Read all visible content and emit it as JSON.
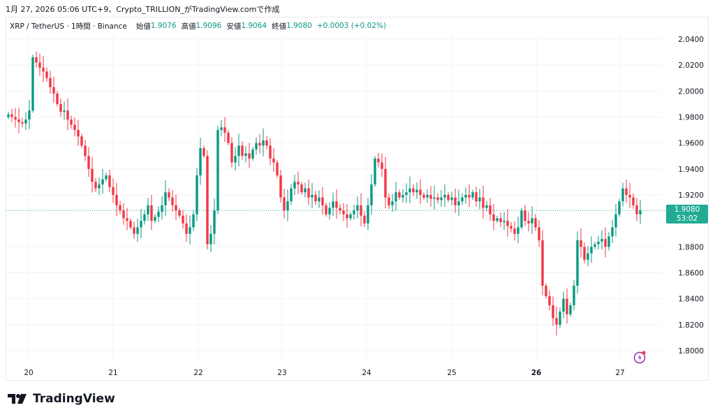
{
  "caption": "1月 27, 2026 05:06 UTC+9、Crypto_TRILLION_がTradingView.comで作成",
  "legend": {
    "symbol": "XRP / TetherUS · 1時間 · Binance",
    "open_label": "始値",
    "open": "1.9076",
    "high_label": "高値",
    "high": "1.9096",
    "low_label": "安値",
    "low": "1.9064",
    "close_label": "終値",
    "close": "1.9080",
    "change": "+0.0003 (+0.02%)"
  },
  "price_tag": {
    "price": "1.9080",
    "countdown": "53:02"
  },
  "logo": "TradingView",
  "colors": {
    "up": "#089981",
    "down": "#f23645",
    "accent": "#22ab94"
  },
  "chart_data": {
    "type": "candlestick",
    "title": "XRP / TetherUS 1h",
    "ylim": [
      1.79,
      2.045
    ],
    "yticks": [
      "2.0400",
      "2.0200",
      "2.0000",
      "1.9800",
      "1.9600",
      "1.9400",
      "1.9200",
      "1.8800",
      "1.8600",
      "1.8400",
      "1.8200",
      "1.8000"
    ],
    "xticks": [
      "20",
      "21",
      "22",
      "23",
      "24",
      "25",
      "26",
      "27"
    ],
    "first_open": 1.98,
    "closes": [
      1.982,
      1.98,
      1.978,
      1.976,
      1.975,
      1.978,
      1.985,
      2.026,
      2.022,
      2.018,
      2.015,
      2.01,
      2.003,
      1.998,
      1.99,
      1.984,
      1.985,
      1.978,
      1.974,
      1.97,
      1.965,
      1.958,
      1.95,
      1.94,
      1.93,
      1.925,
      1.928,
      1.932,
      1.935,
      1.926,
      1.92,
      1.912,
      1.908,
      1.902,
      1.9,
      1.895,
      1.89,
      1.895,
      1.9,
      1.905,
      1.912,
      1.9,
      1.903,
      1.907,
      1.912,
      1.922,
      1.918,
      1.912,
      1.908,
      1.904,
      1.898,
      1.89,
      1.895,
      1.905,
      1.935,
      1.956,
      1.95,
      1.882,
      1.89,
      1.908,
      1.97,
      1.972,
      1.968,
      1.96,
      1.945,
      1.95,
      1.958,
      1.95,
      1.952,
      1.948,
      1.955,
      1.96,
      1.958,
      1.962,
      1.958,
      1.948,
      1.945,
      1.935,
      1.918,
      1.908,
      1.915,
      1.925,
      1.93,
      1.928,
      1.922,
      1.925,
      1.918,
      1.92,
      1.915,
      1.918,
      1.912,
      1.905,
      1.91,
      1.915,
      1.91,
      1.908,
      1.905,
      1.902,
      1.905,
      1.908,
      1.912,
      1.904,
      1.898,
      1.912,
      1.928,
      1.948,
      1.945,
      1.94,
      1.918,
      1.912,
      1.915,
      1.922,
      1.918,
      1.92,
      1.922,
      1.925,
      1.922,
      1.924,
      1.92,
      1.918,
      1.92,
      1.917,
      1.918,
      1.916,
      1.918,
      1.92,
      1.916,
      1.918,
      1.912,
      1.915,
      1.918,
      1.92,
      1.918,
      1.922,
      1.915,
      1.918,
      1.91,
      1.912,
      1.905,
      1.9,
      1.902,
      1.899,
      1.9,
      1.896,
      1.894,
      1.89,
      1.895,
      1.908,
      1.9,
      1.898,
      1.902,
      1.895,
      1.885,
      1.85,
      1.842,
      1.835,
      1.825,
      1.82,
      1.83,
      1.84,
      1.828,
      1.835,
      1.85,
      1.885,
      1.88,
      1.87,
      1.875,
      1.88,
      1.882,
      1.884,
      1.886,
      1.88,
      1.888,
      1.895,
      1.905,
      1.915,
      1.925,
      1.92,
      1.918,
      1.912,
      1.905,
      1.908
    ],
    "last_price": 1.908
  }
}
